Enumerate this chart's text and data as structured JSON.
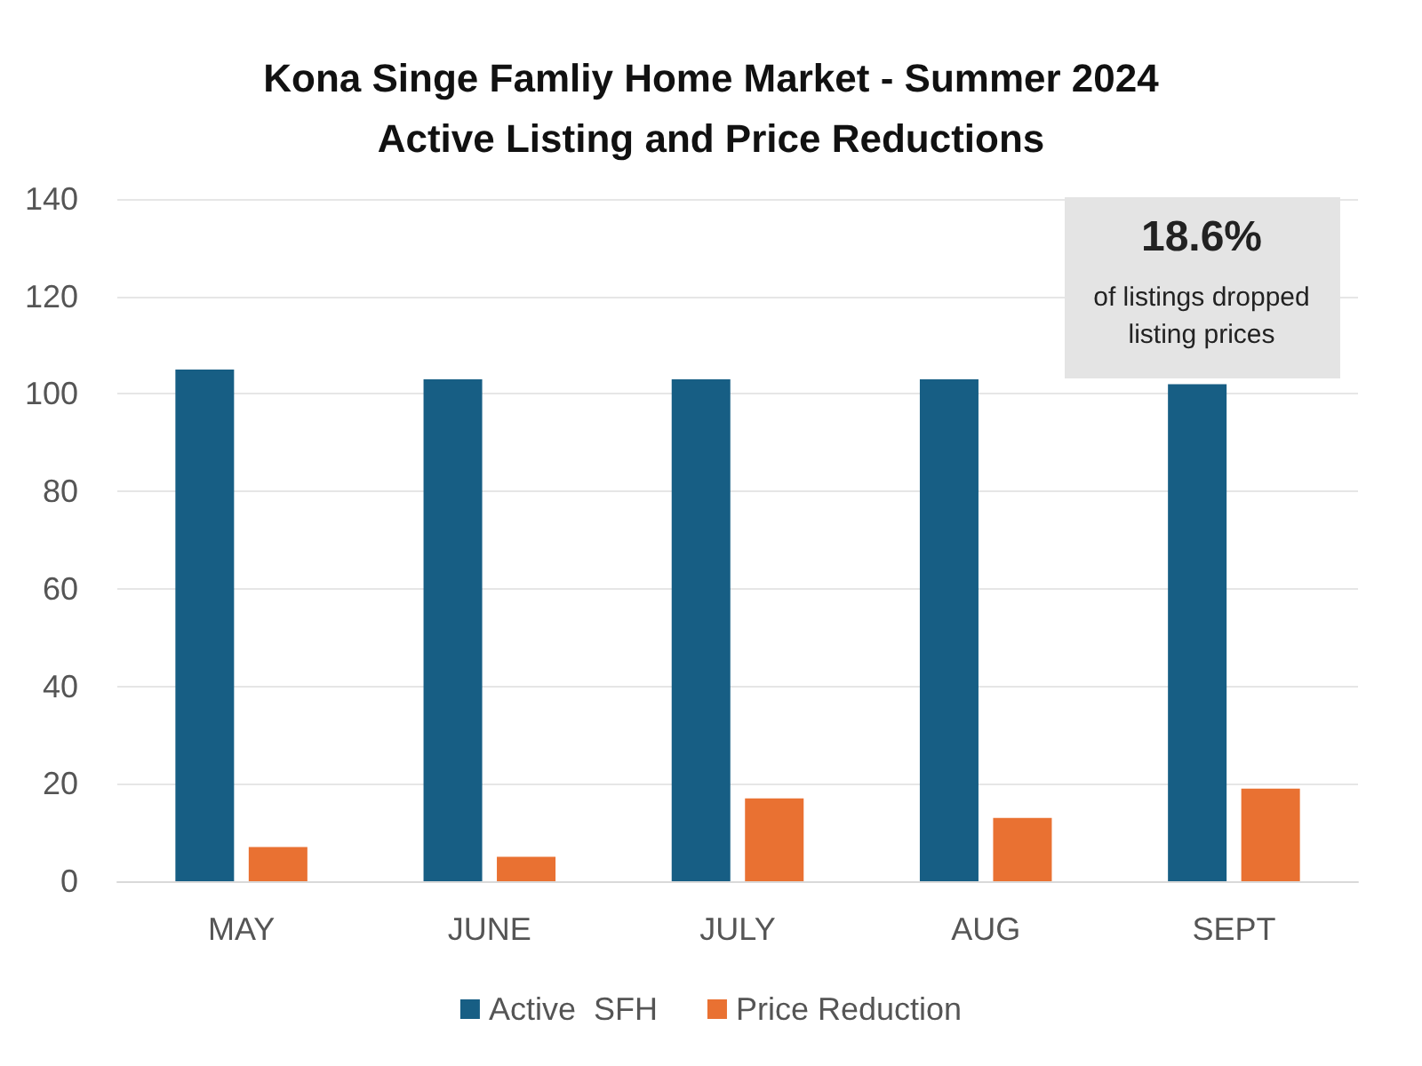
{
  "chart_data": {
    "type": "bar",
    "title": "Kona Singe Famliy Home Market - Summer 2024\nActive Listing and Price Reductions",
    "categories": [
      "MAY",
      "JUNE",
      "JULY",
      "AUG",
      "SEPT"
    ],
    "series": [
      {
        "name": "Active  SFH",
        "color": "#175e84",
        "values": [
          105,
          103,
          103,
          103,
          102
        ]
      },
      {
        "name": "Price Reduction",
        "color": "#e97132",
        "values": [
          7,
          5,
          17,
          13,
          19
        ]
      }
    ],
    "ylim": [
      0,
      140
    ],
    "yticks": [
      0,
      20,
      40,
      60,
      80,
      100,
      120,
      140
    ],
    "grid": "y",
    "legend": "bottom",
    "annotations": [
      "18.6%",
      "of listings dropped\nlisting prices"
    ]
  }
}
